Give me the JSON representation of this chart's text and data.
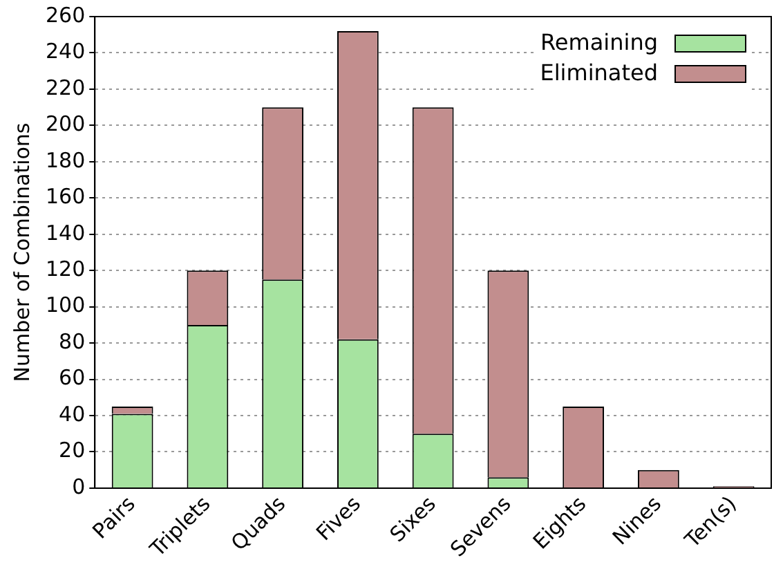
{
  "chart_data": {
    "type": "bar",
    "ylabel": "Number of Combinations",
    "categories": [
      "Pairs",
      "Triplets",
      "Quads",
      "Fives",
      "Sixes",
      "Sevens",
      "Eights",
      "Nines",
      "Ten(s)"
    ],
    "stacked": true,
    "series": [
      {
        "name": "Remaining",
        "color": "#a6e3a0",
        "values": [
          41,
          90,
          115,
          82,
          30,
          6,
          0,
          0,
          0
        ]
      },
      {
        "name": "Eliminated",
        "color": "#c28e8e",
        "values": [
          4,
          30,
          95,
          170,
          180,
          114,
          45,
          10,
          1
        ]
      }
    ],
    "ylim": [
      0,
      260
    ],
    "yticks": [
      0,
      20,
      40,
      60,
      80,
      100,
      120,
      140,
      160,
      180,
      200,
      220,
      240,
      260
    ],
    "grid": "y",
    "legend": "top right"
  }
}
